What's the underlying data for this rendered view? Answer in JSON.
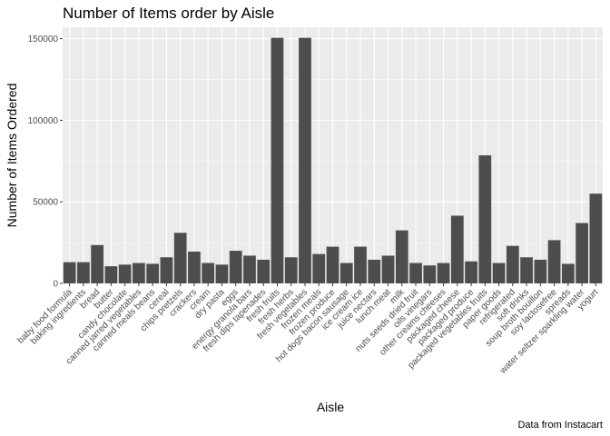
{
  "chart_data": {
    "type": "bar",
    "title": "Number of Items order by Aisle",
    "xlabel": "Aisle",
    "ylabel": "Number of Items Ordered",
    "caption": "Data from Instacart",
    "ylim": [
      0,
      157000
    ],
    "yticks": [
      0,
      50000,
      100000,
      150000
    ],
    "ytick_labels": [
      "0",
      "50000",
      "100000",
      "150000"
    ],
    "grid": true,
    "colors": {
      "panel": "#ebebeb",
      "grid_major": "#ffffff",
      "bar": "#4d4d4d",
      "tick_text": "#4d4d4d"
    },
    "categories": [
      "baby food formula",
      "baking ingredients",
      "bread",
      "butter",
      "candy chocolate",
      "canned jarred vegetables",
      "canned meals beans",
      "cereal",
      "chips pretzels",
      "crackers",
      "cream",
      "dry pasta",
      "eggs",
      "energy granola bars",
      "fresh dips tapenades",
      "fresh fruits",
      "fresh herbs",
      "fresh vegetables",
      "frozen meals",
      "frozen produce",
      "hot dogs bacon sausage",
      "ice cream ice",
      "juice nectars",
      "lunch meat",
      "milk",
      "nuts seeds dried fruit",
      "oils vinegars",
      "other creams cheeses",
      "packaged cheese",
      "packaged produce",
      "packaged vegetables fruits",
      "paper goods",
      "refrigerated",
      "soft drinks",
      "soup broth bouillon",
      "soy lactosefree",
      "spreads",
      "water seltzer sparkling water",
      "yogurt"
    ],
    "values": [
      13000,
      13000,
      23500,
      10500,
      11500,
      12500,
      12000,
      16000,
      31000,
      19500,
      12500,
      11500,
      20000,
      17000,
      14500,
      150500,
      16000,
      150500,
      18000,
      22500,
      12500,
      22500,
      14500,
      17000,
      32500,
      12500,
      11000,
      12500,
      41500,
      13500,
      78500,
      12500,
      23000,
      16000,
      14500,
      26500,
      12000,
      37000,
      55000
    ]
  }
}
